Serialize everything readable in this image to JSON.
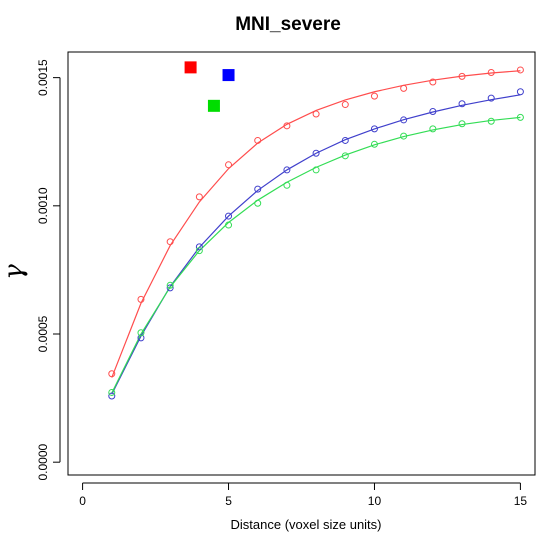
{
  "chart_data": {
    "type": "scatter",
    "title": "MNI_severe",
    "xlabel": "Distance (voxel size units)",
    "ylabel": "γ",
    "xlim": [
      -0.5,
      15.5
    ],
    "ylim": [
      -5e-05,
      0.0016
    ],
    "xticks": [
      0,
      5,
      10,
      15
    ],
    "xtick_labels": [
      "0",
      "5",
      "10",
      "15"
    ],
    "yticks": [
      0.0,
      0.0005,
      0.001,
      0.0015
    ],
    "ytick_labels": [
      "0.0000",
      "0.0005",
      "0.0010",
      "0.0015"
    ],
    "grid": false,
    "legend_markers": [
      {
        "color": "#ff0000",
        "x": 3.7,
        "y": 0.00154
      },
      {
        "color": "#0000ff",
        "x": 5.0,
        "y": 0.00151
      },
      {
        "color": "#00dd00",
        "x": 4.5,
        "y": 0.00139
      }
    ],
    "series": [
      {
        "color": "#ff4d4d",
        "x": [
          1,
          2,
          3,
          4,
          5,
          6,
          7,
          8,
          9,
          10,
          11,
          12,
          13,
          14,
          15
        ],
        "points": [
          0.000345,
          0.000635,
          0.00086,
          0.001035,
          0.00116,
          0.001255,
          0.001312,
          0.001358,
          0.001395,
          0.001428,
          0.001458,
          0.001483,
          0.001505,
          0.00152,
          0.00153
        ],
        "fit": [
          0.00033,
          0.00062,
          0.000845,
          0.001015,
          0.001145,
          0.001245,
          0.001318,
          0.001372,
          0.001413,
          0.001445,
          0.00147,
          0.00149,
          0.001506,
          0.001518,
          0.001527
        ]
      },
      {
        "color": "#4040cc",
        "x": [
          1,
          2,
          3,
          4,
          5,
          6,
          7,
          8,
          9,
          10,
          11,
          12,
          13,
          14,
          15
        ],
        "points": [
          0.000258,
          0.000485,
          0.00068,
          0.00084,
          0.00096,
          0.001065,
          0.00114,
          0.001205,
          0.001255,
          0.0013,
          0.001335,
          0.001368,
          0.001398,
          0.00142,
          0.001445
        ],
        "fit": [
          0.000265,
          0.000492,
          0.000685,
          0.000838,
          0.00096,
          0.00106,
          0.00114,
          0.001205,
          0.001258,
          0.0013,
          0.001336,
          0.001366,
          0.001392,
          0.001414,
          0.001433
        ]
      },
      {
        "color": "#33dd55",
        "x": [
          1,
          2,
          3,
          4,
          5,
          6,
          7,
          8,
          9,
          10,
          11,
          12,
          13,
          14,
          15
        ],
        "points": [
          0.000272,
          0.000505,
          0.00069,
          0.000825,
          0.000925,
          0.00101,
          0.00108,
          0.00114,
          0.001195,
          0.00124,
          0.001272,
          0.0013,
          0.00132,
          0.00133,
          0.001345
        ],
        "fit": [
          0.00027,
          0.0005,
          0.000683,
          0.000825,
          0.000935,
          0.001022,
          0.001092,
          0.00115,
          0.001198,
          0.001238,
          0.00127,
          0.001296,
          0.001317,
          0.001333,
          0.001345
        ]
      }
    ]
  }
}
